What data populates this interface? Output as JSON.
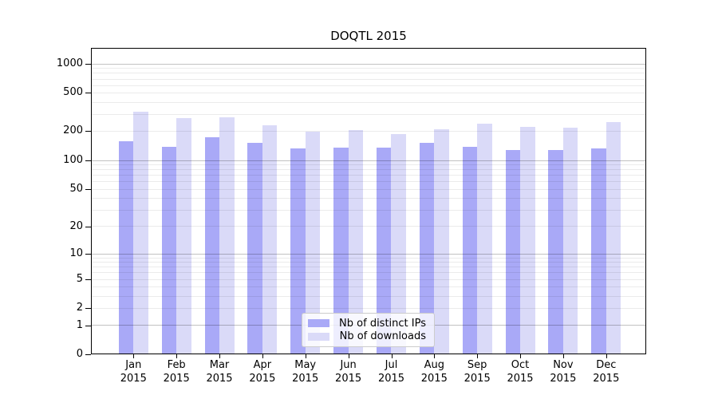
{
  "title": "DOQTL 2015",
  "colors": {
    "ips_bar": "#a9a9f7",
    "downloads_bar": "#dadaf8",
    "grid_major": "rgba(0,0,0,0.24)",
    "grid_minor": "rgba(0,0,0,0.08)",
    "spine": "#000000"
  },
  "legend": {
    "items": [
      {
        "label": "Nb of distinct IPs",
        "color_key": "ips_bar"
      },
      {
        "label": "Nb of downloads",
        "color_key": "downloads_bar"
      }
    ],
    "position": "lower center"
  },
  "axes": {
    "y_tick_labels": [
      "0",
      "1",
      "2",
      "5",
      "10",
      "20",
      "50",
      "100",
      "200",
      "500",
      "1000"
    ],
    "x_year_label": "2015"
  },
  "chart_data": {
    "type": "bar",
    "title": "DOQTL 2015",
    "y_scale": "log1p (symlog-like, log10(1+v))",
    "categories": [
      "Jan",
      "Feb",
      "Mar",
      "Apr",
      "May",
      "Jun",
      "Jul",
      "Aug",
      "Sep",
      "Oct",
      "Nov",
      "Dec"
    ],
    "year": "2015",
    "series": [
      {
        "name": "Nb of distinct IPs",
        "values": [
          155,
          134,
          171,
          149,
          130,
          133,
          133,
          149,
          134,
          126,
          125,
          130
        ]
      },
      {
        "name": "Nb of downloads",
        "values": [
          315,
          266,
          272,
          224,
          195,
          203,
          185,
          205,
          235,
          218,
          215,
          244
        ]
      }
    ],
    "yticks": [
      0,
      1,
      2,
      5,
      10,
      20,
      50,
      100,
      200,
      500,
      1000
    ],
    "minor_grid_values": [
      3,
      4,
      6,
      7,
      8,
      9,
      30,
      40,
      60,
      70,
      80,
      90,
      300,
      400,
      600,
      700,
      800,
      900
    ],
    "major_grid_values": [
      1,
      10,
      100,
      1000
    ],
    "ylim": [
      0,
      1460
    ],
    "xlabel": "",
    "ylabel": "",
    "grid": true,
    "legend_position": "lower center"
  }
}
